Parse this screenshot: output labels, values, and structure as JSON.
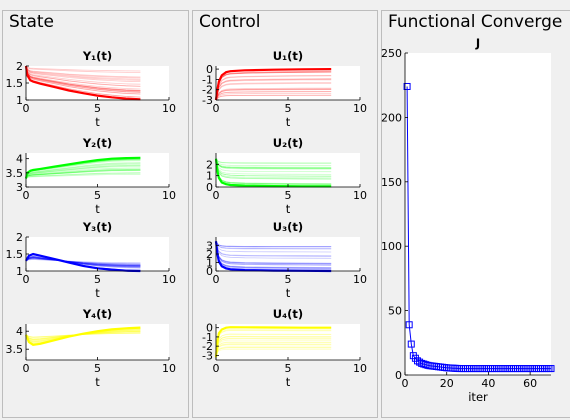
{
  "panels": {
    "state": "State",
    "control": "Control",
    "convergence": "Functional Converge"
  },
  "colors": {
    "y1": "#ff0000",
    "y2": "#00ff00",
    "y3": "#0000ff",
    "y4": "#ffff00",
    "u1": "#ff0000",
    "u2": "#00ff00",
    "u3": "#0000ff",
    "u4": "#ffff00",
    "j": "#0000ff"
  },
  "chart_data": [
    {
      "type": "line",
      "title": "Y₁(t)",
      "xlabel": "t",
      "ylabel": "",
      "xlim": [
        0,
        10
      ],
      "ylim": [
        1,
        2
      ],
      "yticks": [
        1,
        1.5,
        2
      ],
      "xticks": [
        0,
        5,
        10
      ],
      "grid": false,
      "legend": "none",
      "series": [
        {
          "x": [
            0,
            0.1,
            0.3,
            0.5,
            1,
            2,
            3,
            4,
            5,
            6,
            7,
            8
          ],
          "values": [
            2.0,
            1.72,
            1.58,
            1.54,
            1.48,
            1.38,
            1.28,
            1.2,
            1.13,
            1.08,
            1.04,
            1.02
          ]
        }
      ]
    },
    {
      "type": "line",
      "title": "Y₂(t)",
      "xlabel": "t",
      "ylabel": "",
      "xlim": [
        0,
        10
      ],
      "ylim": [
        3,
        4.2
      ],
      "yticks": [
        3,
        3.5,
        4
      ],
      "xticks": [
        0,
        5,
        10
      ],
      "grid": false,
      "legend": "none",
      "series": [
        {
          "x": [
            0,
            0.1,
            0.3,
            0.5,
            1,
            2,
            3,
            4,
            5,
            6,
            7,
            8
          ],
          "values": [
            3.3,
            3.5,
            3.57,
            3.6,
            3.64,
            3.72,
            3.8,
            3.88,
            3.95,
            4.0,
            4.02,
            4.03
          ]
        }
      ]
    },
    {
      "type": "line",
      "title": "Y₃(t)",
      "xlabel": "t",
      "ylabel": "",
      "xlim": [
        0,
        10
      ],
      "ylim": [
        1,
        2
      ],
      "yticks": [
        1,
        1.5,
        2
      ],
      "xticks": [
        0,
        5,
        10
      ],
      "grid": false,
      "legend": "none",
      "series": [
        {
          "x": [
            0,
            0.2,
            0.5,
            1,
            2,
            3,
            4,
            5,
            6,
            7,
            8
          ],
          "values": [
            1.3,
            1.45,
            1.5,
            1.45,
            1.35,
            1.25,
            1.15,
            1.08,
            1.04,
            1.01,
            1.0
          ]
        }
      ]
    },
    {
      "type": "line",
      "title": "Y₄(t)",
      "xlabel": "t",
      "ylabel": "",
      "xlim": [
        0,
        10
      ],
      "ylim": [
        3.2,
        4.2
      ],
      "yticks": [
        3.5,
        4
      ],
      "xticks": [
        0,
        5,
        10
      ],
      "grid": false,
      "legend": "none",
      "series": [
        {
          "x": [
            0,
            0.2,
            0.5,
            1,
            2,
            3,
            4,
            5,
            6,
            7,
            8
          ],
          "values": [
            3.9,
            3.7,
            3.62,
            3.65,
            3.75,
            3.85,
            3.93,
            4.0,
            4.05,
            4.08,
            4.1
          ]
        }
      ]
    },
    {
      "type": "line",
      "title": "U₁(t)",
      "xlabel": "t",
      "ylabel": "",
      "xlim": [
        0,
        10
      ],
      "ylim": [
        -3,
        0.3
      ],
      "yticks": [
        -3,
        -2,
        -1,
        0
      ],
      "xticks": [
        0,
        5,
        10
      ],
      "grid": false,
      "legend": "none",
      "series": [
        {
          "x": [
            0,
            0.1,
            0.2,
            0.4,
            0.7,
            1,
            2,
            4,
            6,
            8
          ],
          "values": [
            -3.0,
            -2.0,
            -1.2,
            -0.6,
            -0.3,
            -0.2,
            -0.12,
            -0.06,
            -0.02,
            0.0
          ]
        }
      ]
    },
    {
      "type": "line",
      "title": "U₂(t)",
      "xlabel": "t",
      "ylabel": "",
      "xlim": [
        0,
        10
      ],
      "ylim": [
        0,
        3
      ],
      "yticks": [
        0,
        1,
        2
      ],
      "xticks": [
        0,
        5,
        10
      ],
      "grid": false,
      "legend": "none",
      "series": [
        {
          "x": [
            0,
            0.1,
            0.2,
            0.4,
            0.7,
            1,
            2,
            4,
            6,
            8
          ],
          "values": [
            2.5,
            1.4,
            0.8,
            0.4,
            0.25,
            0.18,
            0.12,
            0.08,
            0.06,
            0.05
          ]
        }
      ]
    },
    {
      "type": "line",
      "title": "U₃(t)",
      "xlabel": "t",
      "ylabel": "",
      "xlim": [
        0,
        10
      ],
      "ylim": [
        0,
        4
      ],
      "yticks": [
        0,
        1,
        2,
        3
      ],
      "xticks": [
        0,
        5,
        10
      ],
      "grid": false,
      "legend": "none",
      "series": [
        {
          "x": [
            0,
            0.1,
            0.2,
            0.4,
            0.7,
            1,
            2,
            4,
            6,
            8
          ],
          "values": [
            3.5,
            2.0,
            1.1,
            0.55,
            0.3,
            0.2,
            0.1,
            0.05,
            0.02,
            0.0
          ]
        }
      ]
    },
    {
      "type": "line",
      "title": "U₄(t)",
      "xlabel": "t",
      "ylabel": "",
      "xlim": [
        0,
        10
      ],
      "ylim": [
        -3.5,
        0.4
      ],
      "yticks": [
        -3,
        -2,
        -1,
        0
      ],
      "xticks": [
        0,
        5,
        10
      ],
      "grid": false,
      "legend": "none",
      "series": [
        {
          "x": [
            0,
            0.1,
            0.2,
            0.4,
            0.7,
            1,
            2,
            4,
            6,
            8
          ],
          "values": [
            -3.2,
            -1.5,
            -0.6,
            -0.2,
            0.0,
            0.05,
            0.04,
            0.02,
            0.0,
            0.0
          ]
        }
      ]
    },
    {
      "type": "line",
      "title": "J",
      "xlabel": "iter",
      "ylabel": "",
      "xlim": [
        0,
        70
      ],
      "ylim": [
        0,
        250
      ],
      "yticks": [
        0,
        50,
        100,
        150,
        200,
        250
      ],
      "xticks": [
        0,
        20,
        40,
        60
      ],
      "grid": false,
      "legend": "none",
      "marker": "square",
      "series": [
        {
          "x": [
            1,
            2,
            3,
            4,
            5,
            6,
            7,
            8,
            9,
            10,
            11,
            12,
            13,
            14,
            15,
            16,
            17,
            18,
            19,
            20,
            21,
            22,
            23,
            24,
            25,
            26,
            27,
            28,
            29,
            30,
            31,
            32,
            33,
            34,
            35,
            36,
            37,
            38,
            39,
            40,
            41,
            42,
            43,
            44,
            45,
            46,
            47,
            48,
            49,
            50,
            51,
            52,
            53,
            54,
            55,
            56,
            57,
            58,
            59,
            60,
            61,
            62,
            63,
            64,
            65,
            66,
            67,
            68,
            69,
            70
          ],
          "values": [
            224,
            39,
            24,
            15,
            13,
            11,
            10,
            9,
            8.5,
            8,
            7.5,
            7.2,
            7,
            6.8,
            6.6,
            6.4,
            6.2,
            6,
            5.8,
            5.6,
            5.5,
            5.4,
            5.3,
            5.2,
            5.1,
            5,
            5,
            5,
            5,
            5,
            5,
            5,
            5,
            5,
            5,
            5,
            5,
            5,
            5,
            5,
            5,
            5,
            5,
            5,
            5,
            5,
            5,
            5,
            5,
            5,
            5,
            5,
            5,
            5,
            5,
            5,
            5,
            5,
            5,
            5,
            5,
            5,
            5,
            5,
            5,
            5,
            5,
            5,
            5,
            5
          ]
        }
      ]
    }
  ]
}
